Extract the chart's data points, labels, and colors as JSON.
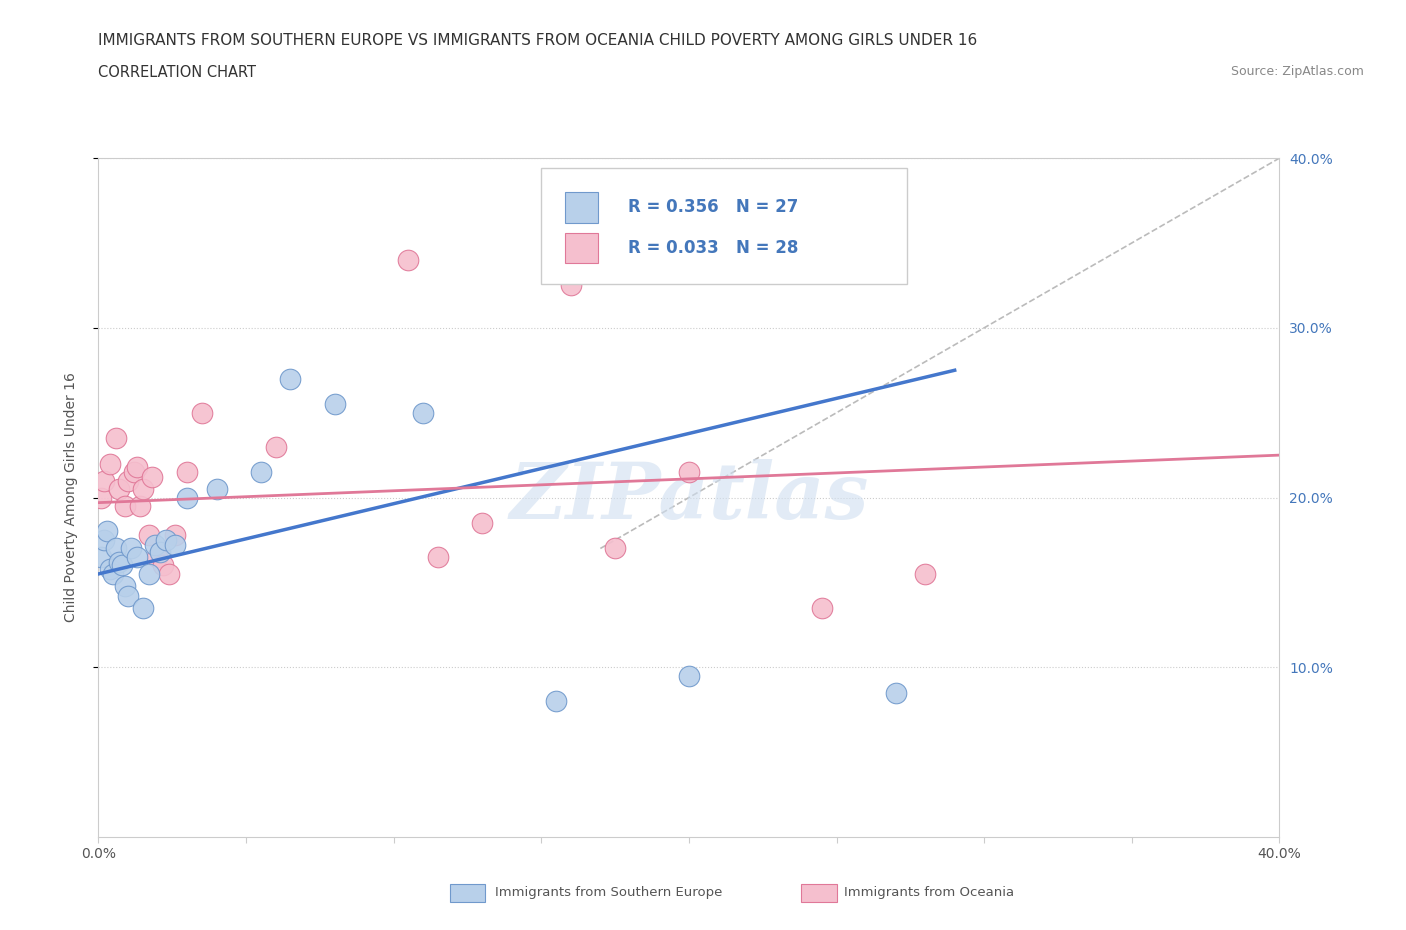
{
  "title": "IMMIGRANTS FROM SOUTHERN EUROPE VS IMMIGRANTS FROM OCEANIA CHILD POVERTY AMONG GIRLS UNDER 16",
  "subtitle": "CORRELATION CHART",
  "source": "Source: ZipAtlas.com",
  "ylabel": "Child Poverty Among Girls Under 16",
  "xlim": [
    0.0,
    0.4
  ],
  "ylim": [
    0.0,
    0.4
  ],
  "grid_color": "#cccccc",
  "grid_style": "dotted",
  "background_color": "#ffffff",
  "watermark": "ZIPatlas",
  "series1_color": "#b8d0ea",
  "series1_edge_color": "#7099cc",
  "series2_color": "#f5bfce",
  "series2_edge_color": "#e07898",
  "series1_label": "Immigrants from Southern Europe",
  "series2_label": "Immigrants from Oceania",
  "series1_R": "0.356",
  "series1_N": "27",
  "series2_R": "0.033",
  "series2_N": "28",
  "legend_text_color": "#4477bb",
  "series1_x": [
    0.001,
    0.002,
    0.003,
    0.004,
    0.005,
    0.006,
    0.007,
    0.008,
    0.009,
    0.01,
    0.011,
    0.013,
    0.015,
    0.017,
    0.019,
    0.021,
    0.023,
    0.026,
    0.03,
    0.04,
    0.055,
    0.065,
    0.08,
    0.11,
    0.155,
    0.2,
    0.27
  ],
  "series1_y": [
    0.165,
    0.175,
    0.18,
    0.158,
    0.155,
    0.17,
    0.162,
    0.16,
    0.148,
    0.142,
    0.17,
    0.165,
    0.135,
    0.155,
    0.172,
    0.168,
    0.175,
    0.172,
    0.2,
    0.205,
    0.215,
    0.27,
    0.255,
    0.25,
    0.08,
    0.095,
    0.085
  ],
  "series2_x": [
    0.001,
    0.002,
    0.004,
    0.006,
    0.007,
    0.009,
    0.01,
    0.012,
    0.013,
    0.014,
    0.015,
    0.017,
    0.018,
    0.02,
    0.022,
    0.024,
    0.026,
    0.03,
    0.035,
    0.06,
    0.115,
    0.16,
    0.2,
    0.245,
    0.28,
    0.105,
    0.13,
    0.175
  ],
  "series2_y": [
    0.2,
    0.21,
    0.22,
    0.235,
    0.205,
    0.195,
    0.21,
    0.215,
    0.218,
    0.195,
    0.205,
    0.178,
    0.212,
    0.165,
    0.16,
    0.155,
    0.178,
    0.215,
    0.25,
    0.23,
    0.165,
    0.325,
    0.215,
    0.135,
    0.155,
    0.34,
    0.185,
    0.17
  ],
  "line1_color": "#4477cc",
  "line2_color": "#e07898",
  "trend1_x": [
    0.0,
    0.29
  ],
  "trend1_y": [
    0.155,
    0.275
  ],
  "trend2_x": [
    0.0,
    0.4
  ],
  "trend2_y": [
    0.197,
    0.225
  ],
  "ref_line_color": "#bbbbbb",
  "ref_line_dash": "dashed",
  "ref_line_x": [
    0.17,
    0.4
  ],
  "ref_line_y": [
    0.17,
    0.4
  ]
}
